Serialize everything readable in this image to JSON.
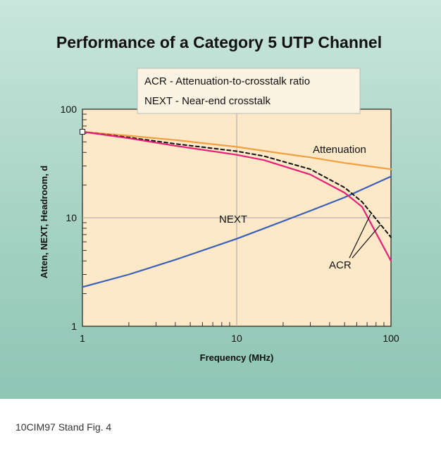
{
  "chart_data": {
    "type": "line",
    "title": "Performance of a Category 5 UTP Channel",
    "xlabel": "Frequency (MHz)",
    "ylabel": "Atten, NEXT, Headroom, d",
    "xscale": "log",
    "yscale": "log",
    "xlim": [
      1,
      100
    ],
    "ylim": [
      1,
      100
    ],
    "x_ticks": [
      "1",
      "10",
      "100"
    ],
    "y_ticks": [
      "1",
      "10",
      "100"
    ],
    "legend": {
      "placement": "top",
      "entries": [
        "ACR - Attenuation-to-crosstalk ratio",
        "NEXT - Near-end crosstalk"
      ]
    },
    "annotations": [
      "Attenuation",
      "NEXT",
      "ACR"
    ],
    "series": [
      {
        "name": "Attenuation",
        "color": "#f0a040",
        "style": "solid",
        "x": [
          1,
          2,
          4,
          10,
          20,
          30,
          50,
          100
        ],
        "y": [
          62,
          57,
          52,
          45,
          39,
          36,
          32,
          28
        ]
      },
      {
        "name": "NEXT",
        "color": "#3b5fb8",
        "style": "solid",
        "x": [
          1,
          2,
          4,
          10,
          20,
          30,
          50,
          100
        ],
        "y": [
          2.3,
          3.0,
          4.1,
          6.4,
          9.3,
          11.6,
          15.4,
          24
        ]
      },
      {
        "name": "ACR",
        "color": "#e8207a",
        "style": "solid",
        "x": [
          1,
          2,
          4,
          10,
          15,
          30,
          50,
          65,
          100
        ],
        "y": [
          62,
          54,
          46,
          38,
          34,
          25,
          17,
          12.6,
          4
        ]
      },
      {
        "name": "ACR",
        "color": "#111111",
        "style": "dashed",
        "x": [
          1,
          2,
          4,
          10,
          15,
          30,
          50,
          65,
          100
        ],
        "y": [
          62,
          55,
          48,
          41,
          37,
          28,
          19,
          14,
          6.6
        ]
      }
    ]
  },
  "caption": "10CIM97 Stand Fig. 4"
}
